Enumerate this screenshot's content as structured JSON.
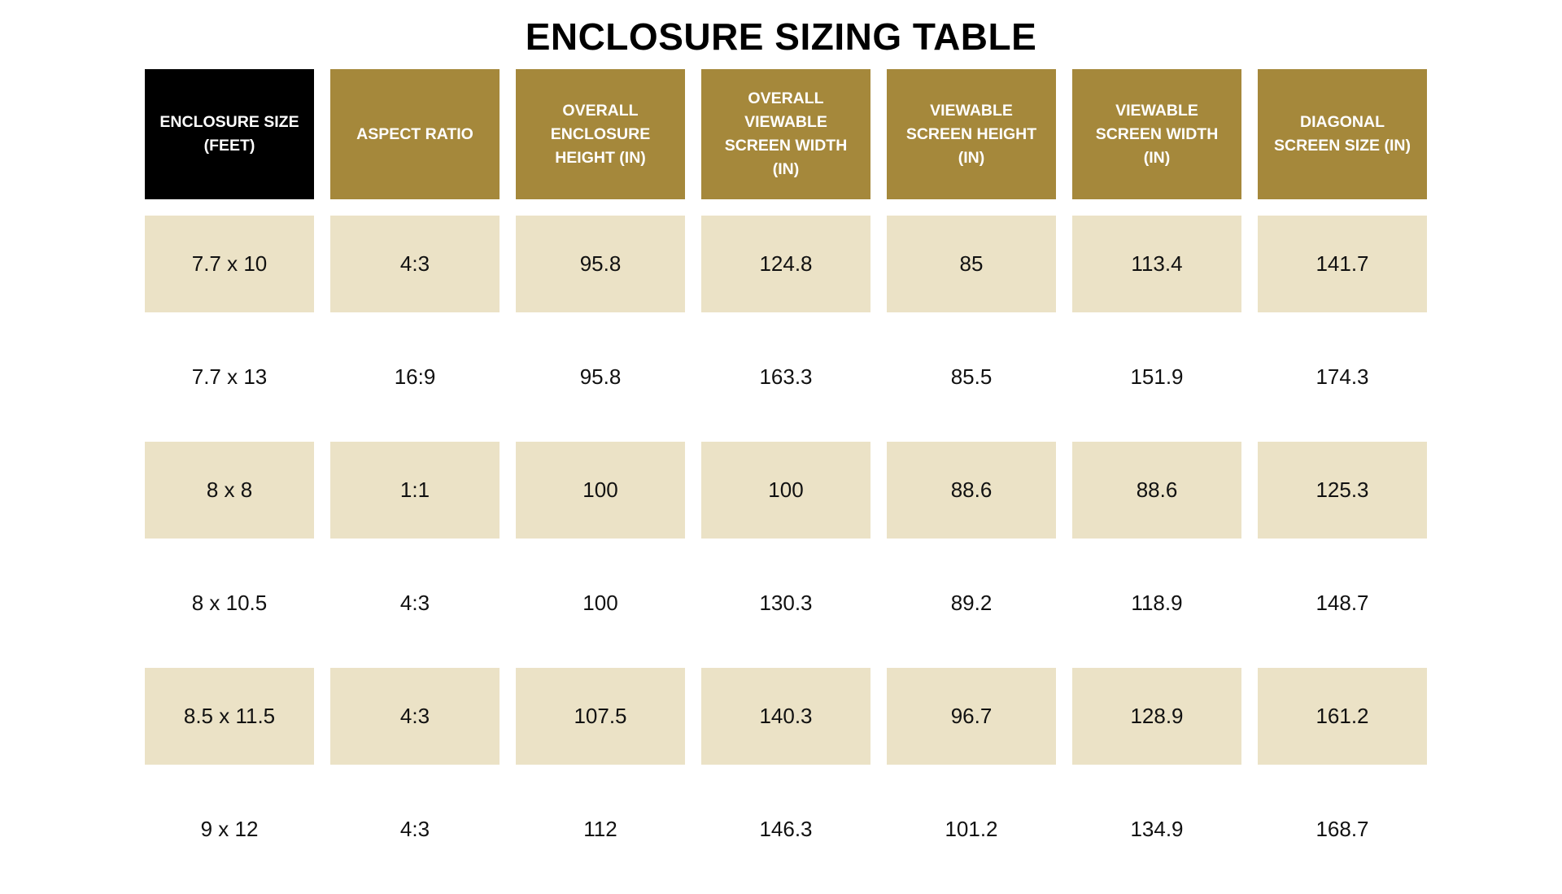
{
  "title": "ENCLOSURE SIZING TABLE",
  "colors": {
    "header_accent": "#a5883b",
    "header_first": "#000000",
    "row_shade": "#ebe2c6",
    "row_plain": "#ffffff"
  },
  "table": {
    "headers": [
      "ENCLOSURE SIZE (FEET)",
      "ASPECT RATIO",
      "OVERALL ENCLOSURE HEIGHT (IN)",
      "OVERALL VIEWABLE SCREEN WIDTH (IN)",
      "VIEWABLE SCREEN HEIGHT (IN)",
      "VIEWABLE SCREEN WIDTH (IN)",
      "DIAGONAL SCREEN SIZE (IN)"
    ],
    "rows": [
      [
        "7.7 x 10",
        "4:3",
        "95.8",
        "124.8",
        "85",
        "113.4",
        "141.7"
      ],
      [
        "7.7 x 13",
        "16:9",
        "95.8",
        "163.3",
        "85.5",
        "151.9",
        "174.3"
      ],
      [
        "8 x 8",
        "1:1",
        "100",
        "100",
        "88.6",
        "88.6",
        "125.3"
      ],
      [
        "8 x 10.5",
        "4:3",
        "100",
        "130.3",
        "89.2",
        "118.9",
        "148.7"
      ],
      [
        "8.5 x 11.5",
        "4:3",
        "107.5",
        "140.3",
        "96.7",
        "128.9",
        "161.2"
      ],
      [
        "9 x 12",
        "4:3",
        "112",
        "146.3",
        "101.2",
        "134.9",
        "168.7"
      ]
    ]
  }
}
